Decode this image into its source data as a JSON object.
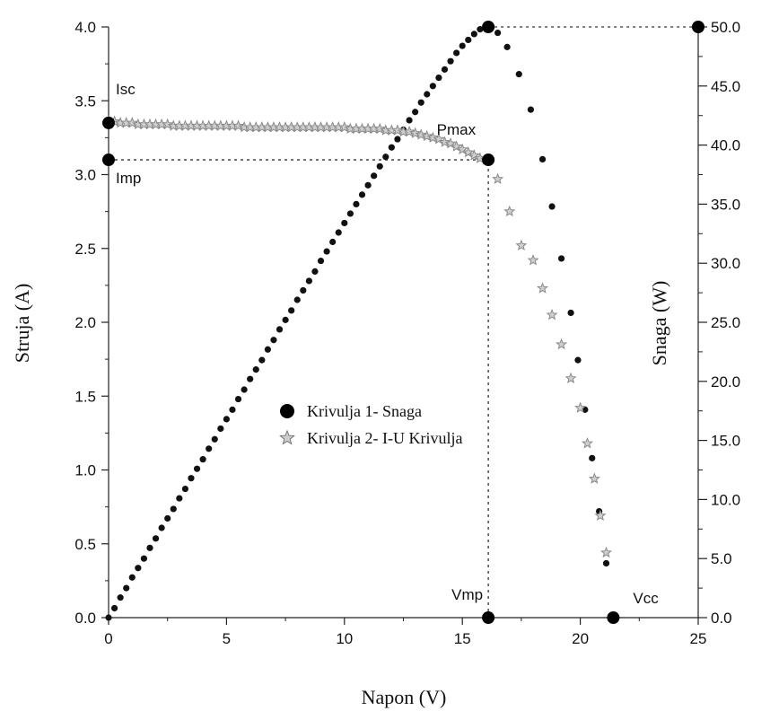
{
  "chart_data": {
    "type": "scatter",
    "xlabel": "Napon (V)",
    "ylabel": "Struja (A)",
    "y2label": "Snaga (W)",
    "xlim": [
      0,
      25
    ],
    "ylim": [
      0,
      4.0
    ],
    "y2lim": [
      0,
      50.0
    ],
    "xticks": [
      "0",
      "5",
      "10",
      "15",
      "20",
      "25"
    ],
    "yticks": [
      "0.0",
      "0.5",
      "1.0",
      "1.5",
      "2.0",
      "2.5",
      "3.0",
      "3.5",
      "4.0"
    ],
    "y2ticks": [
      "0.0",
      "5.0",
      "10.0",
      "15.0",
      "20.0",
      "25.0",
      "30.0",
      "35.0",
      "40.0",
      "45.0",
      "50.0"
    ],
    "grid": false,
    "legend_position": "center",
    "legend": [
      {
        "label": "Krivulja 1- Snaga",
        "marker": "circle"
      },
      {
        "label": "Krivulja 2- I-U Krivulja",
        "marker": "star"
      }
    ],
    "series": [
      {
        "name": "Krivulja 1- Snaga",
        "axis": "right",
        "color": "#111111",
        "marker": "circle",
        "x": [
          0.0,
          0.25,
          0.5,
          0.75,
          1.0,
          1.25,
          1.5,
          1.75,
          2.0,
          2.25,
          2.5,
          2.75,
          3.0,
          3.25,
          3.5,
          3.75,
          4.0,
          4.25,
          4.5,
          4.75,
          5.0,
          5.25,
          5.5,
          5.75,
          6.0,
          6.25,
          6.5,
          6.75,
          7.0,
          7.25,
          7.5,
          7.75,
          8.0,
          8.25,
          8.5,
          8.75,
          9.0,
          9.25,
          9.5,
          9.75,
          10.0,
          10.25,
          10.5,
          10.75,
          11.0,
          11.25,
          11.5,
          11.75,
          12.0,
          12.25,
          12.5,
          12.75,
          13.0,
          13.25,
          13.5,
          13.75,
          14.0,
          14.25,
          14.5,
          14.75,
          15.0,
          15.25,
          15.5,
          15.75,
          16.0,
          16.2,
          16.5,
          16.9,
          17.4,
          17.9,
          18.4,
          18.8,
          19.2,
          19.6,
          19.9,
          20.2,
          20.5,
          20.8,
          21.1
        ],
        "y": [
          0.0,
          0.8,
          1.7,
          2.5,
          3.4,
          4.2,
          5.0,
          5.9,
          6.7,
          7.6,
          8.4,
          9.2,
          10.1,
          10.9,
          11.8,
          12.6,
          13.4,
          14.3,
          15.1,
          16.0,
          16.8,
          17.6,
          18.5,
          19.3,
          20.2,
          21.0,
          21.8,
          22.7,
          23.5,
          24.4,
          25.2,
          26.0,
          26.9,
          27.7,
          28.5,
          29.3,
          30.2,
          31.0,
          31.8,
          32.6,
          33.4,
          34.2,
          35.0,
          35.8,
          36.6,
          37.4,
          38.2,
          39.0,
          39.8,
          40.5,
          41.3,
          42.1,
          42.8,
          43.6,
          44.3,
          45.0,
          45.7,
          46.4,
          47.1,
          47.8,
          48.4,
          48.9,
          49.4,
          49.8,
          50.0,
          49.9,
          49.5,
          48.3,
          46.0,
          43.0,
          38.8,
          34.8,
          30.4,
          25.8,
          21.8,
          17.6,
          13.5,
          9.0,
          4.6
        ]
      },
      {
        "name": "Krivulja 2- I-U Krivulja",
        "axis": "left",
        "color": "#8a8a8a",
        "marker": "star",
        "x": [
          0.0,
          0.25,
          0.5,
          0.75,
          1.0,
          1.25,
          1.5,
          1.75,
          2.0,
          2.25,
          2.5,
          2.75,
          3.0,
          3.25,
          3.5,
          3.75,
          4.0,
          4.25,
          4.5,
          4.75,
          5.0,
          5.25,
          5.5,
          5.75,
          6.0,
          6.25,
          6.5,
          6.75,
          7.0,
          7.25,
          7.5,
          7.75,
          8.0,
          8.25,
          8.5,
          8.75,
          9.0,
          9.25,
          9.5,
          9.75,
          10.0,
          10.25,
          10.5,
          10.75,
          11.0,
          11.25,
          11.5,
          11.75,
          12.0,
          12.25,
          12.5,
          12.75,
          13.0,
          13.25,
          13.5,
          13.75,
          14.0,
          14.25,
          14.5,
          14.75,
          15.0,
          15.25,
          15.5,
          15.75,
          16.0,
          16.5,
          17.0,
          17.5,
          18.0,
          18.4,
          18.8,
          19.2,
          19.6,
          20.0,
          20.3,
          20.6,
          20.85,
          21.1
        ],
        "y": [
          3.36,
          3.36,
          3.35,
          3.35,
          3.35,
          3.34,
          3.34,
          3.34,
          3.34,
          3.34,
          3.34,
          3.33,
          3.33,
          3.33,
          3.33,
          3.33,
          3.33,
          3.33,
          3.33,
          3.33,
          3.33,
          3.33,
          3.33,
          3.32,
          3.32,
          3.32,
          3.32,
          3.32,
          3.32,
          3.32,
          3.32,
          3.32,
          3.32,
          3.32,
          3.32,
          3.32,
          3.32,
          3.32,
          3.32,
          3.32,
          3.32,
          3.31,
          3.31,
          3.31,
          3.31,
          3.31,
          3.31,
          3.3,
          3.3,
          3.3,
          3.29,
          3.29,
          3.28,
          3.27,
          3.26,
          3.25,
          3.24,
          3.22,
          3.21,
          3.19,
          3.17,
          3.15,
          3.13,
          3.11,
          3.1,
          2.97,
          2.75,
          2.52,
          2.42,
          2.23,
          2.05,
          1.85,
          1.62,
          1.42,
          1.18,
          0.94,
          0.69,
          0.44
        ]
      }
    ],
    "highlight_points": [
      {
        "label": "Isc",
        "axis": "left",
        "x": 0,
        "y": 3.35
      },
      {
        "label": "Imp",
        "axis": "left",
        "x": 0,
        "y": 3.1
      },
      {
        "label": "Pmax",
        "axis": "left",
        "x": 16.1,
        "y": 3.1
      },
      {
        "label": "Vmp",
        "axis": "left",
        "x": 16.1,
        "y": 0
      },
      {
        "label": "Vcc",
        "axis": "left",
        "x": 21.4,
        "y": 0
      },
      {
        "label": "",
        "axis": "right",
        "x": 16.1,
        "y": 50.0
      },
      {
        "label": "",
        "axis": "right",
        "x": 25,
        "y": 50.0
      }
    ],
    "reference_lines": [
      {
        "axis": "left",
        "from": [
          0,
          3.1
        ],
        "to": [
          16.1,
          3.1
        ]
      },
      {
        "axis": "left",
        "from": [
          16.1,
          0
        ],
        "to": [
          16.1,
          3.1
        ]
      },
      {
        "axis": "right",
        "from": [
          16.1,
          50.0
        ],
        "to": [
          25,
          50.0
        ]
      }
    ]
  }
}
